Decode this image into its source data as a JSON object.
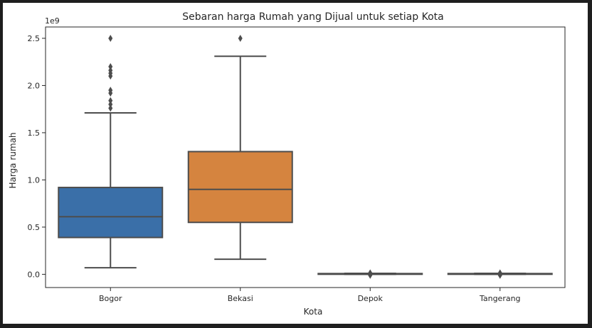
{
  "chart_data": {
    "type": "box",
    "title": "Sebaran harga Rumah yang Dijual untuk setiap Kota",
    "xlabel": "Kota",
    "ylabel": "Harga rumah",
    "y_scale_label": "1e9",
    "ylim": [
      -0.14,
      2.62
    ],
    "yticks": [
      "0.0",
      "0.5",
      "1.0",
      "1.5",
      "2.0",
      "2.5"
    ],
    "yticks_values": [
      0.0,
      0.5,
      1.0,
      1.5,
      2.0,
      2.5
    ],
    "grid": false,
    "categories": [
      "Bogor",
      "Bekasi",
      "Depok",
      "Tangerang"
    ],
    "boxes": [
      {
        "category": "Bogor",
        "color": "#3a6fa8",
        "whisker_low": 0.07,
        "q1": 0.39,
        "median": 0.61,
        "q3": 0.92,
        "whisker_high": 1.71,
        "outliers": [
          1.76,
          1.8,
          1.84,
          1.92,
          1.95,
          2.1,
          2.13,
          2.16,
          2.2,
          2.5
        ]
      },
      {
        "category": "Bekasi",
        "color": "#d5843f",
        "whisker_low": 0.16,
        "q1": 0.55,
        "median": 0.9,
        "q3": 1.3,
        "whisker_high": 2.31,
        "outliers": [
          2.5
        ]
      },
      {
        "category": "Depok",
        "color": "#3a9240",
        "whisker_low": 0.0,
        "q1": 0.003,
        "median": 0.005,
        "q3": 0.008,
        "whisker_high": 0.01,
        "outliers": [
          -0.01,
          0.0,
          0.015
        ]
      },
      {
        "category": "Tangerang",
        "color": "#c43f3f",
        "whisker_low": 0.0,
        "q1": 0.003,
        "median": 0.005,
        "q3": 0.008,
        "whisker_high": 0.01,
        "outliers": [
          -0.01,
          0.0,
          0.015
        ]
      }
    ]
  }
}
